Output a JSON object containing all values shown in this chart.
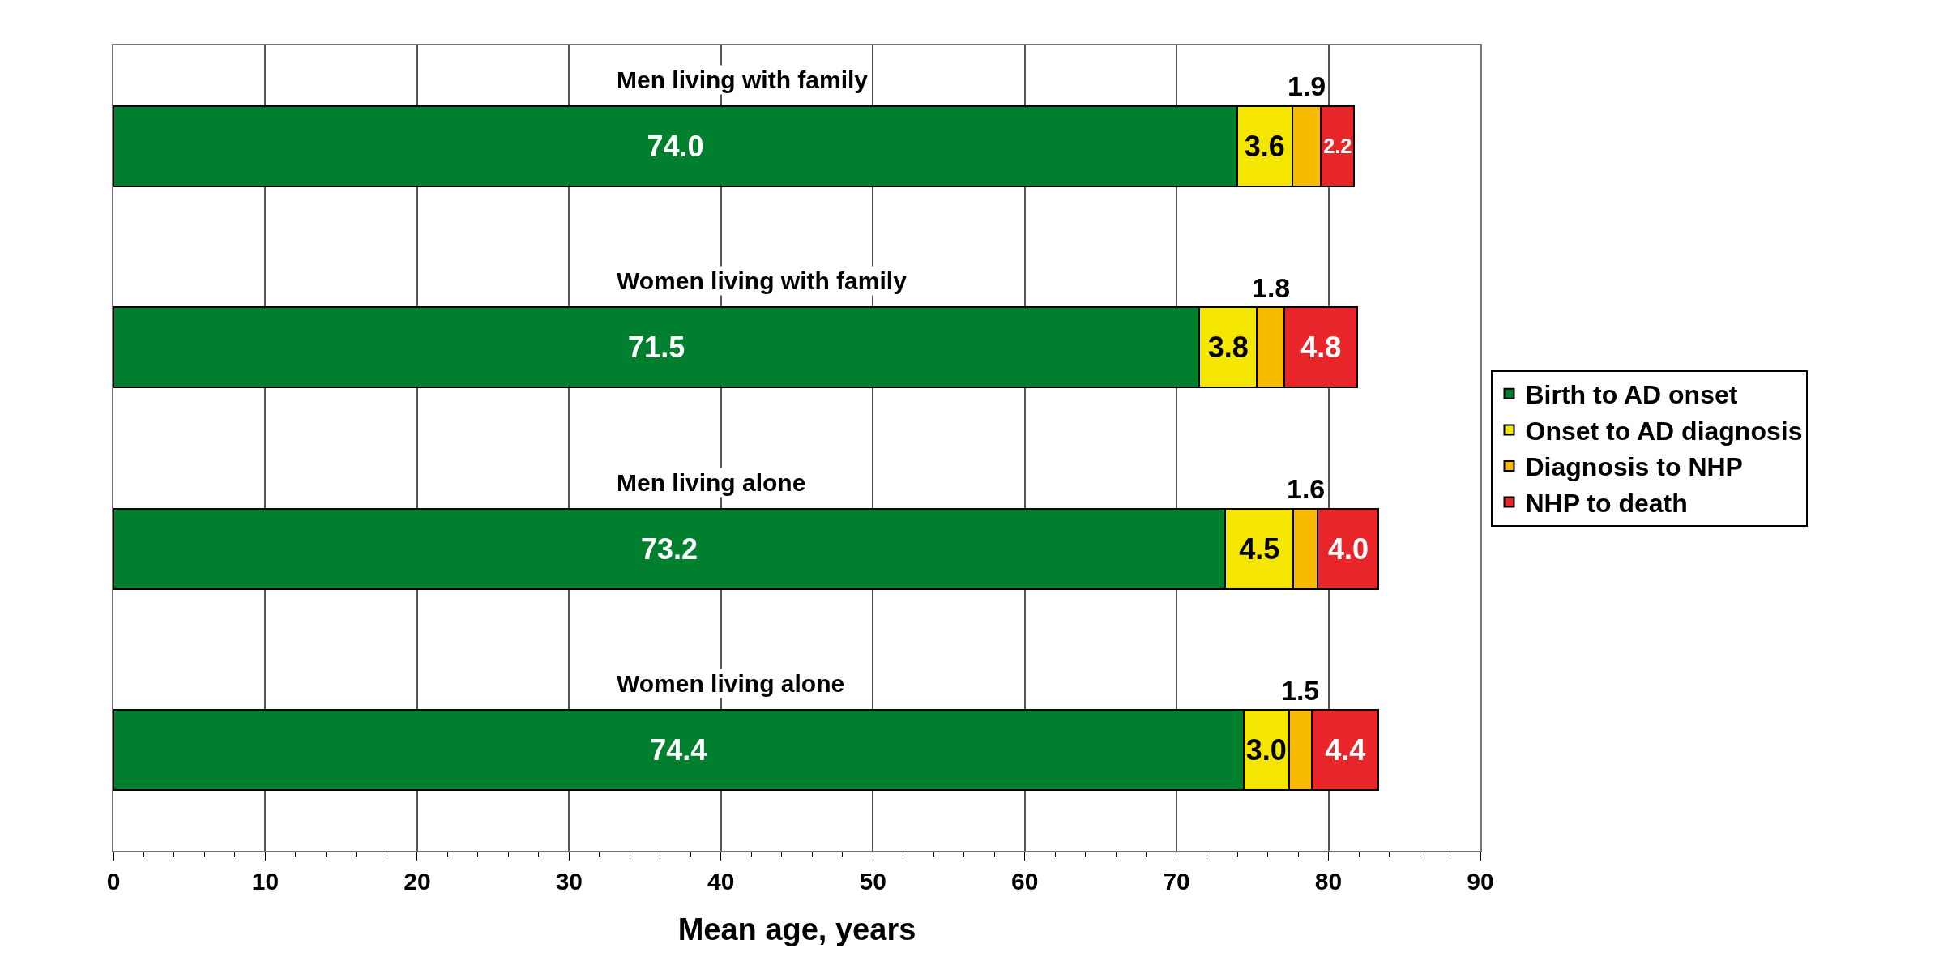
{
  "chart_data": {
    "type": "bar",
    "orientation": "horizontal",
    "stacked": true,
    "categories": [
      "Men living with family",
      "Women living with family",
      "Men living alone",
      "Women living alone"
    ],
    "series": [
      {
        "name": "Birth to AD onset",
        "color": "#007f2e",
        "values": [
          74.0,
          71.5,
          73.2,
          74.4
        ],
        "value_labels": [
          "74.0",
          "71.5",
          "73.2",
          "74.4"
        ]
      },
      {
        "name": "Onset to AD diagnosis",
        "color": "#f5e600",
        "values": [
          3.6,
          3.8,
          4.5,
          3.0
        ],
        "value_labels": [
          "3.6",
          "3.8",
          "4.5",
          "3.0"
        ]
      },
      {
        "name": "Diagnosis to NHP",
        "color": "#f9bb00",
        "values": [
          1.9,
          1.8,
          1.6,
          1.5
        ],
        "value_labels": [
          "1.9",
          "1.8",
          "1.6",
          "1.5"
        ]
      },
      {
        "name": "NHP to death",
        "color": "#e8262a",
        "values": [
          2.2,
          4.8,
          4.0,
          4.4
        ],
        "value_labels": [
          "2.2",
          "4.8",
          "4.0",
          "4.4"
        ]
      }
    ],
    "xlabel": "Mean age, years",
    "xlim": [
      0,
      90
    ],
    "xticks": [
      0,
      10,
      20,
      30,
      40,
      50,
      60,
      70,
      80,
      90
    ],
    "grid": "x",
    "legend": "right",
    "tick_labels": "x"
  }
}
